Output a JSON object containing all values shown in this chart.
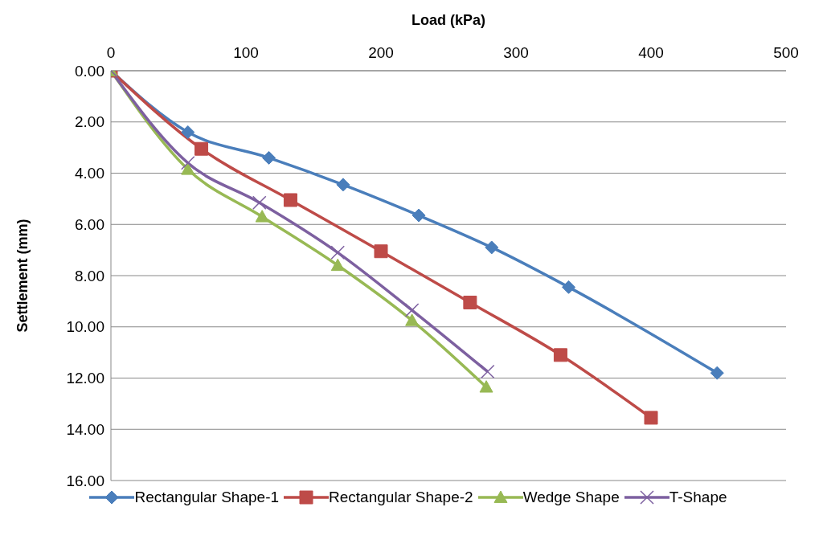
{
  "chart_data": {
    "type": "line",
    "xlabel": "Load (kPa)",
    "ylabel": "Settlement (mm)",
    "xlim": [
      0,
      500
    ],
    "xticks": [
      0,
      100,
      200,
      300,
      400,
      500
    ],
    "ylim": [
      16,
      0
    ],
    "yticks": [
      {
        "value": 0,
        "label": "0.00"
      },
      {
        "value": 2,
        "label": "2.00"
      },
      {
        "value": 4,
        "label": "4.00"
      },
      {
        "value": 6,
        "label": "6.00"
      },
      {
        "value": 8,
        "label": "8.00"
      },
      {
        "value": 10,
        "label": "10.00"
      },
      {
        "value": 12,
        "label": "12.00"
      },
      {
        "value": 14,
        "label": "14.00"
      },
      {
        "value": 16,
        "label": "16.00"
      }
    ],
    "grid": "y",
    "legend": "bottom",
    "series": [
      {
        "name": "Rectangular Shape-1",
        "color": "#4a7ebb",
        "marker": "diamond",
        "x": [
          0,
          57,
          117,
          172,
          228,
          282,
          339,
          449
        ],
        "values": [
          0,
          2.4,
          3.4,
          4.45,
          5.65,
          6.9,
          8.45,
          11.8
        ]
      },
      {
        "name": "Rectangular Shape-2",
        "color": "#be4b48",
        "marker": "square",
        "x": [
          0,
          67,
          133,
          200,
          266,
          333,
          400
        ],
        "values": [
          0,
          3.05,
          5.05,
          7.05,
          9.05,
          11.1,
          13.55
        ]
      },
      {
        "name": "Wedge Shape",
        "color": "#98b954",
        "marker": "triangle",
        "x": [
          0,
          57,
          112,
          168,
          223,
          278
        ],
        "values": [
          0,
          3.85,
          5.7,
          7.6,
          9.75,
          12.35
        ]
      },
      {
        "name": "T-Shape",
        "color": "#7d60a0",
        "marker": "cross",
        "x": [
          0,
          57,
          110,
          168,
          223,
          279
        ],
        "values": [
          0,
          3.6,
          5.15,
          7.1,
          9.35,
          11.75
        ]
      }
    ]
  }
}
